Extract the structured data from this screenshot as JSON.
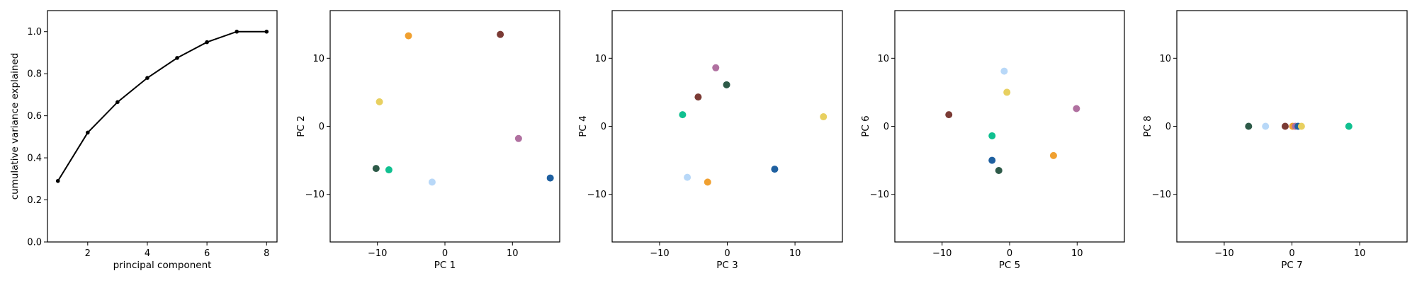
{
  "chart_data": [
    {
      "type": "line",
      "xlabel": "principal component",
      "ylabel": "cumulative variance explained",
      "xlim": [
        0.65,
        8.35
      ],
      "ylim": [
        0,
        1.1
      ],
      "xticks": [
        2,
        4,
        6,
        8
      ],
      "yticks": [
        0.0,
        0.2,
        0.4,
        0.6,
        0.8,
        1.0
      ],
      "xtick_labels": [
        "2",
        "4",
        "6",
        "8"
      ],
      "ytick_labels": [
        "0.0",
        "0.2",
        "0.4",
        "0.6",
        "0.8",
        "1.0"
      ],
      "x": [
        1,
        2,
        3,
        4,
        5,
        6,
        7,
        8
      ],
      "y": [
        0.29,
        0.52,
        0.665,
        0.78,
        0.875,
        0.95,
        1.0,
        1.0
      ],
      "color": "#000000",
      "grid": false
    },
    {
      "type": "scatter",
      "xlabel": "PC 1",
      "ylabel": "PC 2",
      "xlim": [
        -17,
        17
      ],
      "ylim": [
        -17,
        17
      ],
      "xticks": [
        -10,
        0,
        10
      ],
      "yticks": [
        -10,
        0,
        10
      ],
      "xtick_labels": [
        "−10",
        "0",
        "10"
      ],
      "ytick_labels": [
        "−10",
        "0",
        "10"
      ],
      "points": [
        {
          "x": -5.4,
          "y": 13.3,
          "color": "#f0a030"
        },
        {
          "x": 8.2,
          "y": 13.5,
          "color": "#7b3b35"
        },
        {
          "x": -9.7,
          "y": 3.6,
          "color": "#e8d060"
        },
        {
          "x": 10.9,
          "y": -1.8,
          "color": "#b070a0"
        },
        {
          "x": -10.2,
          "y": -6.2,
          "color": "#2d5a48"
        },
        {
          "x": -8.3,
          "y": -6.4,
          "color": "#10c090"
        },
        {
          "x": -1.9,
          "y": -8.2,
          "color": "#b8d8f8"
        },
        {
          "x": 15.6,
          "y": -7.6,
          "color": "#1f60a0"
        }
      ]
    },
    {
      "type": "scatter",
      "xlabel": "PC 3",
      "ylabel": "PC 4",
      "xlim": [
        -17,
        17
      ],
      "ylim": [
        -17,
        17
      ],
      "xticks": [
        -10,
        0,
        10
      ],
      "yticks": [
        -10,
        0,
        10
      ],
      "xtick_labels": [
        "−10",
        "0",
        "10"
      ],
      "ytick_labels": [
        "−10",
        "0",
        "10"
      ],
      "points": [
        {
          "x": -1.7,
          "y": 8.6,
          "color": "#b070a0"
        },
        {
          "x": -0.1,
          "y": 6.1,
          "color": "#2d5a48"
        },
        {
          "x": -4.3,
          "y": 4.3,
          "color": "#7b3b35"
        },
        {
          "x": -6.6,
          "y": 1.7,
          "color": "#10c090"
        },
        {
          "x": 14.2,
          "y": 1.4,
          "color": "#e8d060"
        },
        {
          "x": -5.9,
          "y": -7.5,
          "color": "#b8d8f8"
        },
        {
          "x": -2.9,
          "y": -8.2,
          "color": "#f0a030"
        },
        {
          "x": 7.0,
          "y": -6.3,
          "color": "#1f60a0"
        }
      ]
    },
    {
      "type": "scatter",
      "xlabel": "PC 5",
      "ylabel": "PC 6",
      "xlim": [
        -17,
        17
      ],
      "ylim": [
        -17,
        17
      ],
      "xticks": [
        -10,
        0,
        10
      ],
      "yticks": [
        -10,
        0,
        10
      ],
      "xtick_labels": [
        "−10",
        "0",
        "10"
      ],
      "ytick_labels": [
        "−10",
        "0",
        "10"
      ],
      "points": [
        {
          "x": -0.8,
          "y": 8.1,
          "color": "#b8d8f8"
        },
        {
          "x": -0.4,
          "y": 5.0,
          "color": "#e8d060"
        },
        {
          "x": -9.0,
          "y": 1.7,
          "color": "#7b3b35"
        },
        {
          "x": 9.9,
          "y": 2.6,
          "color": "#b070a0"
        },
        {
          "x": -2.6,
          "y": -1.4,
          "color": "#10c090"
        },
        {
          "x": 6.5,
          "y": -4.3,
          "color": "#f0a030"
        },
        {
          "x": -2.6,
          "y": -5.0,
          "color": "#1f60a0"
        },
        {
          "x": -1.6,
          "y": -6.5,
          "color": "#2d5a48"
        }
      ]
    },
    {
      "type": "scatter",
      "xlabel": "PC 7",
      "ylabel": "PC 8",
      "xlim": [
        -17,
        17
      ],
      "ylim": [
        -17,
        17
      ],
      "xticks": [
        -10,
        0,
        10
      ],
      "yticks": [
        -10,
        0,
        10
      ],
      "xtick_labels": [
        "−10",
        "0",
        "10"
      ],
      "ytick_labels": [
        "−10",
        "0",
        "10"
      ],
      "points": [
        {
          "x": -6.4,
          "y": 0,
          "color": "#2d5a48"
        },
        {
          "x": -3.9,
          "y": 0,
          "color": "#b8d8f8"
        },
        {
          "x": -1.0,
          "y": 0,
          "color": "#7b3b35"
        },
        {
          "x": 0.1,
          "y": 0,
          "color": "#f0a030"
        },
        {
          "x": 0.5,
          "y": 0,
          "color": "#b070a0"
        },
        {
          "x": 0.9,
          "y": 0,
          "color": "#1f60a0"
        },
        {
          "x": 1.4,
          "y": 0,
          "color": "#e8d060"
        },
        {
          "x": 8.4,
          "y": 0,
          "color": "#10c090"
        }
      ]
    }
  ]
}
